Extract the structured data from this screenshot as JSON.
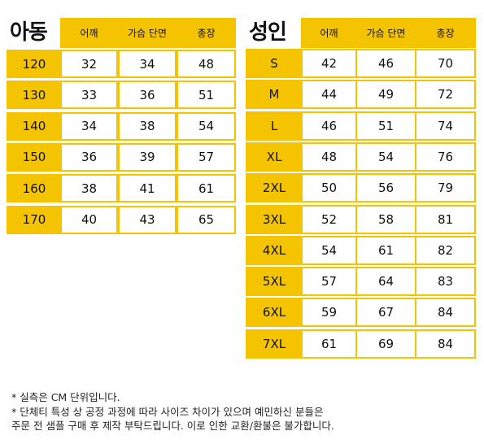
{
  "kids": {
    "title": "아동",
    "headers": [
      "어깨",
      "가슴 단면",
      "총장"
    ],
    "rows": [
      {
        "size": "120",
        "values": [
          "32",
          "34",
          "48"
        ]
      },
      {
        "size": "130",
        "values": [
          "33",
          "36",
          "51"
        ]
      },
      {
        "size": "140",
        "values": [
          "34",
          "38",
          "54"
        ]
      },
      {
        "size": "150",
        "values": [
          "36",
          "39",
          "57"
        ]
      },
      {
        "size": "160",
        "values": [
          "38",
          "41",
          "61"
        ]
      },
      {
        "size": "170",
        "values": [
          "40",
          "43",
          "65"
        ]
      }
    ]
  },
  "adult": {
    "title": "성인",
    "headers": [
      "어깨",
      "가슴 단면",
      "총장"
    ],
    "rows": [
      {
        "size": "S",
        "values": [
          "42",
          "46",
          "70"
        ]
      },
      {
        "size": "M",
        "values": [
          "44",
          "49",
          "72"
        ]
      },
      {
        "size": "L",
        "values": [
          "46",
          "51",
          "74"
        ]
      },
      {
        "size": "XL",
        "values": [
          "48",
          "54",
          "76"
        ]
      },
      {
        "size": "2XL",
        "values": [
          "50",
          "56",
          "79"
        ]
      },
      {
        "size": "3XL",
        "values": [
          "52",
          "58",
          "81"
        ]
      },
      {
        "size": "4XL",
        "values": [
          "54",
          "61",
          "82"
        ]
      },
      {
        "size": "5XL",
        "values": [
          "57",
          "64",
          "83"
        ]
      },
      {
        "size": "6XL",
        "values": [
          "59",
          "67",
          "84"
        ]
      },
      {
        "size": "7XL",
        "values": [
          "61",
          "69",
          "84"
        ]
      }
    ]
  },
  "notes": [
    "* 실측은 CM 단위입니다.",
    "* 단체티 특성 상 공정 과정에 따라 사이즈 차이가 있으며 예민하신 분들은",
    "주문 전 샘플 구매 후 제작 부탁드립니다. 이로 인한 교환/환불은 불가합니다."
  ],
  "colors": {
    "accent": "#f5c400",
    "text": "#111111"
  }
}
